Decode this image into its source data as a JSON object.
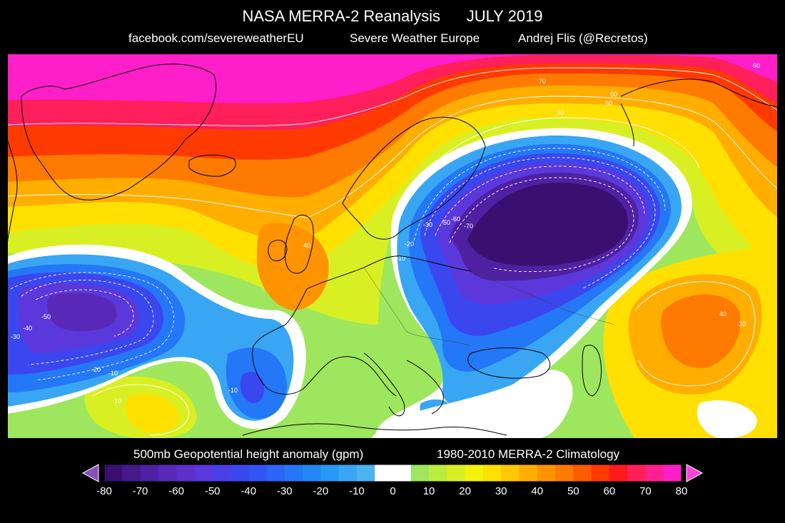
{
  "header": {
    "title": "NASA MERRA-2 Reanalysis      JULY 2019",
    "credit_left": "facebook.com/severeweatherEU",
    "credit_mid": "Severe Weather Europe",
    "credit_right": "Andrej Flis (@Recretos)"
  },
  "map": {
    "region": "North Atlantic and Europe",
    "field": "500mb geopotential height anomaly",
    "features": {
      "positive_north": {
        "max_anomaly": 80,
        "labels": [
          "70",
          "60",
          "60",
          "50",
          "30",
          "60"
        ]
      },
      "negative_central_europe": {
        "min_anomaly": -80,
        "labels": [
          "-70",
          "-60",
          "-50",
          "-40",
          "-30",
          "-20",
          "-10",
          "-10"
        ]
      },
      "negative_atlantic": {
        "min_anomaly": -60,
        "labels": [
          "-50",
          "-40",
          "-30",
          "-20",
          "-10"
        ]
      },
      "negative_iberia": {
        "labels": [
          "-10"
        ]
      },
      "positive_east": {
        "labels": [
          "40",
          "30",
          "10"
        ]
      },
      "positive_atlantic_south": {
        "labels": [
          "10"
        ]
      },
      "positive_uk": {
        "labels": [
          "40"
        ]
      }
    }
  },
  "legend": {
    "title_left": "500mb Geopotential height anomaly (gpm)",
    "title_right": "1980-2010 MERRA-2 Climatology",
    "ticks": [
      "-80",
      "-70",
      "-60",
      "-50",
      "-40",
      "-30",
      "-20",
      "-10",
      "0",
      "10",
      "20",
      "30",
      "40",
      "50",
      "60",
      "70",
      "80"
    ],
    "bins": [
      {
        "min": -80,
        "max": -75,
        "color": "#3b0f70"
      },
      {
        "min": -75,
        "max": -70,
        "color": "#45198a"
      },
      {
        "min": -70,
        "max": -65,
        "color": "#4f21a2"
      },
      {
        "min": -65,
        "max": -60,
        "color": "#5a28b8"
      },
      {
        "min": -60,
        "max": -55,
        "color": "#5f2fcc"
      },
      {
        "min": -55,
        "max": -50,
        "color": "#5a38db"
      },
      {
        "min": -50,
        "max": -45,
        "color": "#4a3fe6"
      },
      {
        "min": -45,
        "max": -40,
        "color": "#3a47ef"
      },
      {
        "min": -40,
        "max": -35,
        "color": "#2f55f5"
      },
      {
        "min": -35,
        "max": -30,
        "color": "#2a66f7"
      },
      {
        "min": -30,
        "max": -25,
        "color": "#2477f7"
      },
      {
        "min": -25,
        "max": -20,
        "color": "#2288f7"
      },
      {
        "min": -20,
        "max": -15,
        "color": "#2898f5"
      },
      {
        "min": -15,
        "max": -10,
        "color": "#38a6f3"
      },
      {
        "min": -10,
        "max": -5,
        "color": "#4cb3ef"
      },
      {
        "min": -5,
        "max": 0,
        "color": "#ffffff"
      },
      {
        "min": 0,
        "max": 5,
        "color": "#ffffff"
      },
      {
        "min": 5,
        "max": 10,
        "color": "#9ee65e"
      },
      {
        "min": 10,
        "max": 15,
        "color": "#b9ec3f"
      },
      {
        "min": 15,
        "max": 20,
        "color": "#d8f023"
      },
      {
        "min": 20,
        "max": 25,
        "color": "#f2f20c"
      },
      {
        "min": 25,
        "max": 30,
        "color": "#ffe000"
      },
      {
        "min": 30,
        "max": 35,
        "color": "#ffc800"
      },
      {
        "min": 35,
        "max": 40,
        "color": "#ffae00"
      },
      {
        "min": 40,
        "max": 45,
        "color": "#ff9400"
      },
      {
        "min": 45,
        "max": 50,
        "color": "#ff7a00"
      },
      {
        "min": 50,
        "max": 55,
        "color": "#ff5c00"
      },
      {
        "min": 55,
        "max": 60,
        "color": "#ff3a00"
      },
      {
        "min": 60,
        "max": 65,
        "color": "#ff1a1a"
      },
      {
        "min": 65,
        "max": 70,
        "color": "#ff1f5a"
      },
      {
        "min": 70,
        "max": 75,
        "color": "#ff1f90"
      },
      {
        "min": 75,
        "max": 80,
        "color": "#ff1fc8"
      }
    ],
    "under_color": "#8a4fb8",
    "over_color": "#ff40d8"
  },
  "colors": {
    "background": "#000000",
    "coastline": "#000000",
    "contour": "#ffffff"
  }
}
